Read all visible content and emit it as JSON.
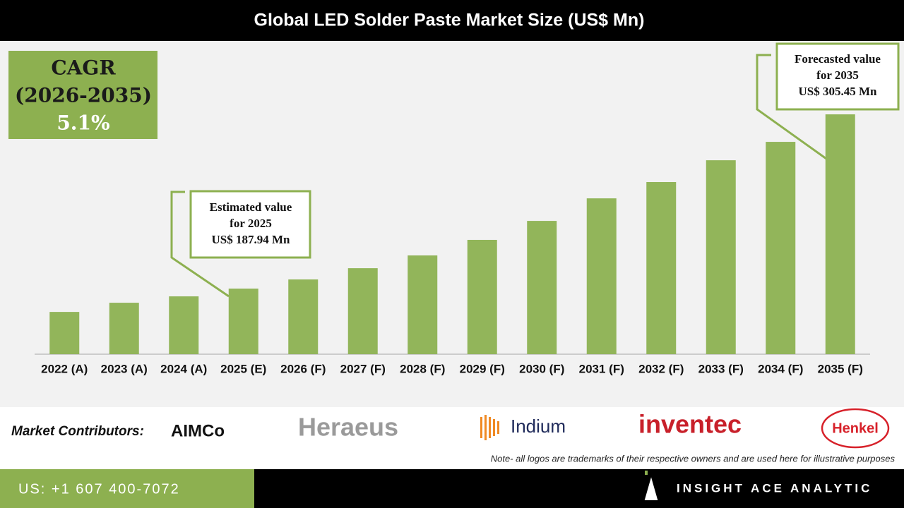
{
  "chart_data": {
    "type": "bar",
    "title": "Global LED Solder Paste Market Size (US$ Mn)",
    "categories": [
      "2022 (A)",
      "2023 (A)",
      "2024 (A)",
      "2025 (E)",
      "2026 (F)",
      "2027 (F)",
      "2028 (F)",
      "2029 (F)",
      "2030 (F)",
      "2031 (F)",
      "2032 (F)",
      "2033 (F)",
      "2034 (F)",
      "2035 (F)"
    ],
    "values": [
      172.2,
      178.4,
      182.7,
      187.94,
      194.1,
      201.7,
      210.3,
      220.8,
      233.6,
      248.8,
      259.8,
      274.5,
      286.9,
      305.45
    ],
    "color": "#92b55a",
    "ylim": [
      143.7,
      311.2
    ],
    "annotations": [
      {
        "lines": [
          "Estimated value",
          "for 2025",
          "US$ 187.94 Mn"
        ]
      },
      {
        "lines": [
          "Forecasted value",
          "for 2035",
          "US$ 305.45 Mn"
        ]
      }
    ]
  },
  "cagr": {
    "label": "CAGR",
    "period": "(2026-2035)",
    "value": "5.1%"
  },
  "contributors": {
    "label": "Market Contributors:",
    "logos": [
      "AIMCo",
      "Heraeus",
      "Indium",
      "inventec",
      "Henkel"
    ],
    "note": "Note- all logos are trademarks of their respective owners and are used here for illustrative purposes"
  },
  "footer": {
    "phone": "US: +1 607 400-7072",
    "brand": "INSIGHT ACE ANALYTIC"
  }
}
